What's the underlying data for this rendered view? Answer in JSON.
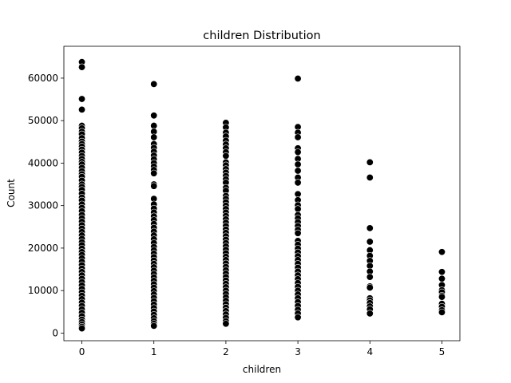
{
  "chart_data": {
    "type": "scatter",
    "title": "children Distribution",
    "xlabel": "children",
    "ylabel": "Count",
    "xlim": [
      -0.25,
      5.25
    ],
    "ylim": [
      -1800,
      67500
    ],
    "x_ticks": [
      0,
      1,
      2,
      3,
      4,
      5
    ],
    "x_tick_labels": [
      "0",
      "1",
      "2",
      "3",
      "4",
      "5"
    ],
    "y_ticks": [
      0,
      10000,
      20000,
      30000,
      40000,
      50000,
      60000
    ],
    "y_tick_labels": [
      "0",
      "10000",
      "20000",
      "30000",
      "40000",
      "50000",
      "60000"
    ],
    "grid": false,
    "marker_color": "#000000",
    "marker_edge_color": "#ffffff",
    "series": [
      {
        "x": 0,
        "y": [
          63800,
          62600,
          55100,
          52600,
          48800,
          48200,
          47400,
          46800,
          45900,
          45100,
          44500,
          43900,
          43200,
          42500,
          41700,
          41000,
          40300,
          39700,
          38900,
          38100,
          37400,
          36800,
          35900,
          35000,
          34400,
          33700,
          32800,
          31900,
          31200,
          30300,
          29500,
          28700,
          27800,
          27000,
          26200,
          25400,
          24600,
          23800,
          23000,
          22200,
          21400,
          20700,
          19900,
          19100,
          18400,
          17600,
          16800,
          16000,
          15200,
          14400,
          13600,
          12800,
          12000,
          11200,
          10400,
          9600,
          8800,
          8000,
          7200,
          6400,
          5600,
          4800,
          4000,
          3200,
          2600,
          2000,
          1500,
          1100
        ]
      },
      {
        "x": 1,
        "y": [
          58600,
          51200,
          48800,
          47400,
          46100,
          44500,
          43600,
          42700,
          41800,
          40900,
          40000,
          39200,
          38400,
          37600,
          35000,
          34600,
          31600,
          30300,
          29300,
          28400,
          27500,
          26600,
          25700,
          24800,
          23900,
          23000,
          22100,
          21200,
          20300,
          19500,
          18700,
          17900,
          17100,
          16300,
          15500,
          14700,
          13900,
          13100,
          12300,
          11500,
          10700,
          9900,
          9100,
          8300,
          7500,
          6700,
          5900,
          5100,
          4300,
          3500,
          2800,
          2200,
          1700
        ]
      },
      {
        "x": 2,
        "y": [
          49500,
          48400,
          47200,
          46300,
          45300,
          44400,
          43500,
          42600,
          41700,
          40200,
          39500,
          38600,
          37800,
          37000,
          36200,
          35400,
          34200,
          33500,
          32300,
          31600,
          30800,
          30000,
          29200,
          28400,
          27600,
          26800,
          26000,
          25200,
          24400,
          23600,
          22800,
          22000,
          21200,
          20400,
          19600,
          18800,
          18000,
          17200,
          16400,
          15600,
          14800,
          14000,
          13200,
          12400,
          11600,
          10800,
          10000,
          9200,
          8400,
          7600,
          6800,
          6000,
          5200,
          4400,
          3600,
          2800,
          2200
        ]
      },
      {
        "x": 3,
        "y": [
          59900,
          48500,
          47200,
          46100,
          43500,
          42600,
          41000,
          39700,
          38200,
          36600,
          35400,
          32700,
          31300,
          30100,
          29200,
          27800,
          27000,
          26100,
          25200,
          24300,
          23500,
          21700,
          20800,
          19900,
          19000,
          18100,
          17200,
          16300,
          15400,
          14500,
          13600,
          12700,
          11800,
          10900,
          10000,
          9100,
          8200,
          7300,
          6400,
          5500,
          4600,
          3700
        ]
      },
      {
        "x": 4,
        "y": [
          40200,
          36600,
          24700,
          21500,
          19500,
          18200,
          17000,
          15800,
          14500,
          13200,
          11000,
          10700,
          8200,
          7700,
          7100,
          6300,
          5600,
          4600
        ]
      },
      {
        "x": 5,
        "y": [
          19100,
          14400,
          12800,
          11300,
          10100,
          9600,
          8800,
          8500,
          6900,
          6200,
          5400,
          4900
        ]
      }
    ]
  }
}
